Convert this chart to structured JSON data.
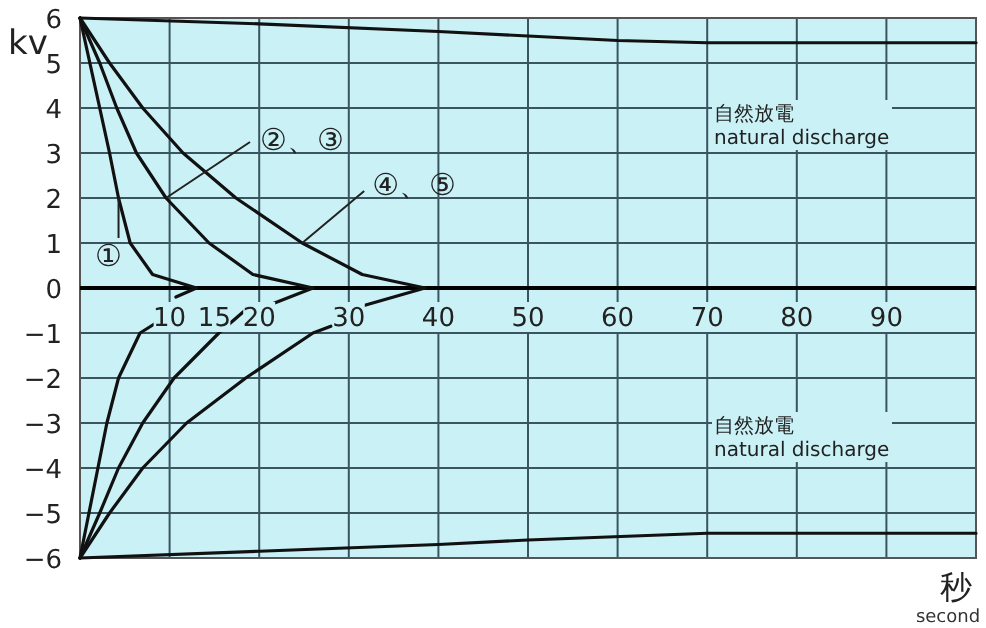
{
  "chart_data": {
    "type": "line",
    "xlabel": "秒\nsecond",
    "ylabel": "kv",
    "xlim": [
      0,
      100
    ],
    "ylim": [
      -6,
      6
    ],
    "xticks": [
      10,
      {
        "value": 15,
        "label": "15"
      },
      20,
      30,
      40,
      50,
      60,
      70,
      80,
      90
    ],
    "yticks": [
      {
        "value": -6,
        "label": "−6"
      },
      {
        "value": -5,
        "label": "−5"
      },
      {
        "value": -4,
        "label": "−4"
      },
      {
        "value": -3,
        "label": "−3"
      },
      {
        "value": -2,
        "label": "−2"
      },
      {
        "value": -1,
        "label": "−1"
      },
      0,
      1,
      2,
      3,
      4,
      5,
      6
    ],
    "grid": true,
    "marker": "none",
    "line_style": "solid",
    "series": [
      {
        "color": "#111111",
        "x": [
          0,
          20,
          40,
          50,
          60,
          70,
          100
        ],
        "values": [
          6,
          5.87,
          5.7,
          5.6,
          5.5,
          5.45,
          5.45
        ]
      },
      {
        "color": "#111111",
        "x": [
          0,
          2.2,
          3.3,
          4.3,
          5.6,
          8.1,
          13
        ],
        "values": [
          6,
          4,
          3,
          2,
          1,
          0.3,
          0
        ]
      },
      {
        "color": "#111111",
        "x": [
          0,
          2.2,
          4.1,
          6.3,
          9.6,
          14.4,
          19.3,
          26
        ],
        "values": [
          6,
          5,
          4,
          3,
          2,
          1,
          0.3,
          0
        ]
      },
      {
        "color": "#111111",
        "x": [
          0,
          3.3,
          7,
          11.5,
          17.4,
          24.8,
          31.5,
          38.5
        ],
        "values": [
          6,
          5,
          4,
          3,
          2,
          1,
          0.3,
          0
        ]
      },
      {
        "color": "#111111",
        "x": [
          0,
          2,
          3,
          4.3,
          6.7,
          8.3
        ],
        "values": [
          -6,
          -4,
          -3,
          -2,
          -1,
          -0.8
        ]
      },
      {
        "color": "#111111",
        "x": [
          10.7,
          13
        ],
        "values": [
          -0.2,
          0
        ]
      },
      {
        "color": "#111111",
        "x": [
          0,
          2.2,
          4.3,
          7,
          10.5,
          15.5,
          18.4
        ],
        "values": [
          -6,
          -5,
          -4,
          -3,
          -2,
          -1,
          -0.5
        ]
      },
      {
        "color": "#111111",
        "x": [
          21.5,
          26
        ],
        "values": [
          -0.35,
          0
        ]
      },
      {
        "color": "#111111",
        "x": [
          0,
          3.3,
          7,
          11.9,
          18.5,
          26,
          28
        ],
        "values": [
          -6,
          -5,
          -4,
          -3,
          -2,
          -1,
          -0.85
        ]
      },
      {
        "color": "#111111",
        "x": [
          31.5,
          38.5
        ],
        "values": [
          -0.4,
          0
        ]
      },
      {
        "color": "#111111",
        "x": [
          0,
          20,
          40,
          50,
          70,
          100
        ],
        "values": [
          -6,
          -5.85,
          -5.7,
          -5.6,
          -5.45,
          -5.45
        ]
      }
    ],
    "annotations": [
      {
        "text": "①",
        "x": 4.3,
        "y": 2
      },
      {
        "text": "②、③",
        "x": 9.6,
        "y": 2
      },
      {
        "text": "④、⑤",
        "x": 24.8,
        "y": 1
      },
      "自然放電\nnatural discharge",
      "自然放電\nnatural discharge"
    ]
  }
}
